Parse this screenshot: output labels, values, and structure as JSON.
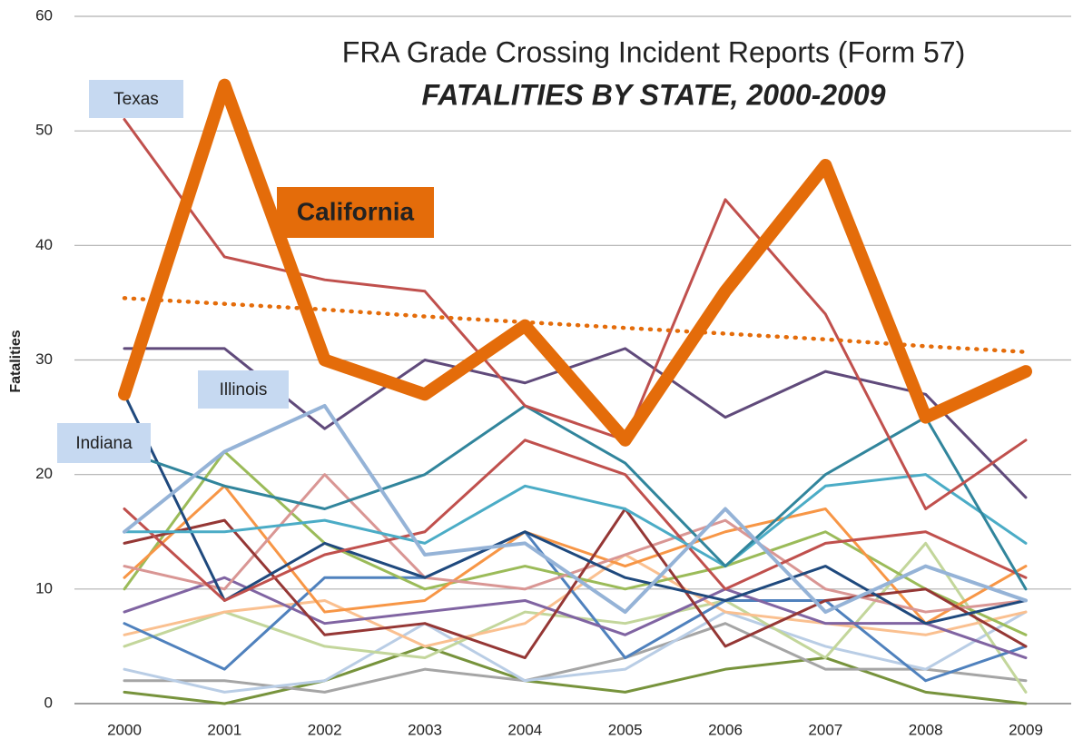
{
  "chart_data": {
    "type": "line",
    "title": "FRA Grade Crossing Incident Reports (Form 57)",
    "subtitle": "FATALITIES BY STATE, 2000-2009",
    "y_label": "Fatalities",
    "categories": [
      "2000",
      "2001",
      "2002",
      "2003",
      "2004",
      "2005",
      "2006",
      "2007",
      "2008",
      "2009"
    ],
    "ylim": [
      0,
      60
    ],
    "yticks": [
      0,
      10,
      20,
      30,
      40,
      50,
      60
    ],
    "grid": true,
    "series": [
      {
        "color": "#77933c",
        "values": [
          1,
          0,
          2,
          5,
          2,
          1,
          3,
          4,
          1,
          0
        ]
      },
      {
        "color": "#a5a5a5",
        "values": [
          2,
          2,
          1,
          3,
          2,
          4,
          7,
          3,
          3,
          2
        ]
      },
      {
        "color": "#b9cde5",
        "values": [
          3,
          1,
          2,
          7,
          2,
          3,
          8,
          5,
          3,
          8
        ]
      },
      {
        "color": "#c3d69b",
        "values": [
          5,
          8,
          5,
          4,
          8,
          7,
          9,
          4,
          14,
          1
        ]
      },
      {
        "color": "#fac090",
        "values": [
          6,
          8,
          9,
          5,
          7,
          13,
          8,
          7,
          6,
          8
        ]
      },
      {
        "color": "#4f81bd",
        "values": [
          7,
          3,
          11,
          11,
          15,
          4,
          9,
          9,
          2,
          5
        ]
      },
      {
        "color": "#8064a2",
        "values": [
          8,
          11,
          7,
          8,
          9,
          6,
          10,
          7,
          7,
          4
        ]
      },
      {
        "color": "#9bbb59",
        "values": [
          10,
          22,
          14,
          10,
          12,
          10,
          12,
          15,
          10,
          6
        ]
      },
      {
        "color": "#f79646",
        "values": [
          11,
          19,
          8,
          9,
          15,
          12,
          15,
          17,
          7,
          12
        ]
      },
      {
        "color": "#d99694",
        "values": [
          12,
          10,
          20,
          11,
          10,
          13,
          16,
          10,
          8,
          9
        ]
      },
      {
        "color": "#953735",
        "values": [
          14,
          16,
          6,
          7,
          4,
          17,
          5,
          9,
          10,
          5
        ]
      },
      {
        "color": "#1f497d",
        "values": [
          27,
          9,
          14,
          11,
          15,
          11,
          9,
          12,
          7,
          9
        ]
      },
      {
        "color": "#c0504d",
        "values": [
          17,
          9,
          13,
          15,
          23,
          20,
          10,
          14,
          15,
          11
        ]
      },
      {
        "color": "#4bacc6",
        "values": [
          15,
          15,
          16,
          14,
          19,
          17,
          12,
          19,
          20,
          14
        ]
      },
      {
        "color": "#604a7b",
        "values": [
          31,
          31,
          24,
          30,
          28,
          31,
          25,
          29,
          27,
          18
        ]
      },
      {
        "name": "Indiana",
        "color": "#31859c",
        "values": [
          22,
          19,
          17,
          20,
          26,
          21,
          12,
          20,
          25,
          10
        ]
      },
      {
        "name": "Illinois",
        "color": "#95b3d7",
        "width": 4,
        "values": [
          15,
          22,
          26,
          13,
          14,
          8,
          17,
          8,
          12,
          9
        ]
      },
      {
        "name": "Texas",
        "color": "#c0504d",
        "values": [
          51,
          39,
          37,
          36,
          26,
          23,
          44,
          34,
          17,
          23
        ]
      },
      {
        "color": "#e46c0a",
        "dotted": true,
        "values": [
          35.4,
          34.9,
          34.4,
          33.8,
          33.3,
          32.8,
          32.3,
          31.8,
          31.2,
          30.7
        ]
      },
      {
        "name": "California",
        "color": "#e46c0a",
        "width": 14,
        "values": [
          27,
          54,
          30,
          27,
          33,
          23,
          36,
          47,
          25,
          29
        ]
      }
    ]
  }
}
